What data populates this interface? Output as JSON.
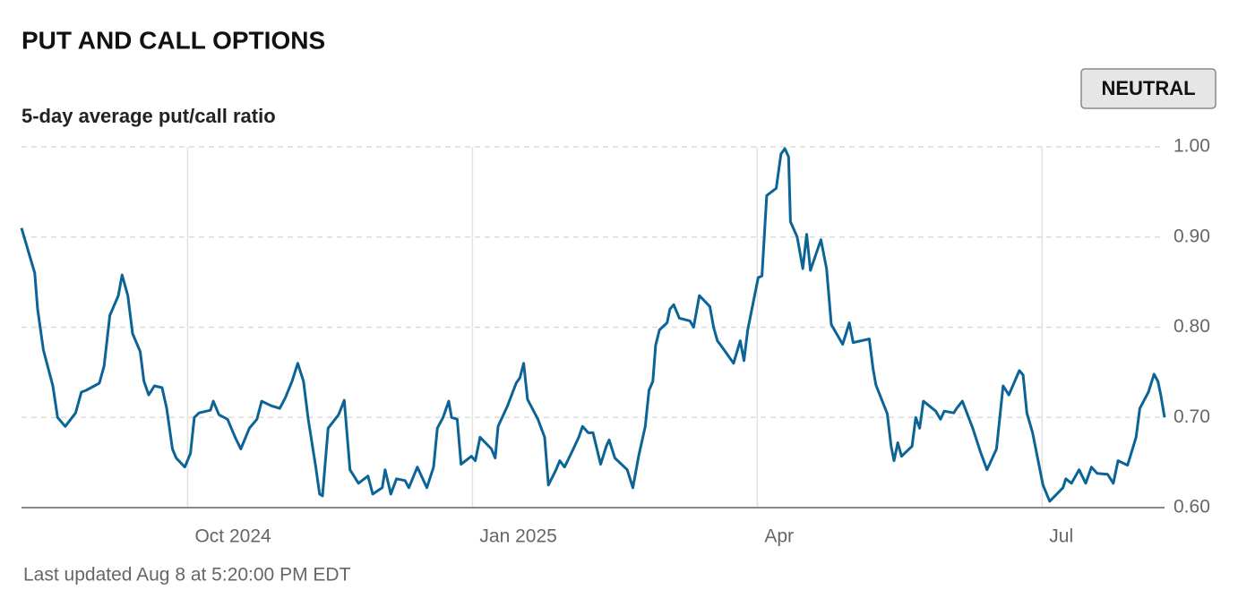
{
  "chart_data": {
    "type": "line",
    "title": "PUT AND CALL OPTIONS",
    "subtitle": "5-day average put/call ratio",
    "badge": "NEUTRAL",
    "footnote": "Last updated Aug 8 at 5:20:00 PM EDT",
    "x": [
      8.25,
      8.39,
      8.42,
      8.48,
      8.58,
      8.63,
      8.71,
      8.82,
      8.88,
      8.93,
      9.07,
      9.12,
      9.18,
      9.27,
      9.31,
      9.37,
      9.42,
      9.5,
      9.54,
      9.59,
      9.65,
      9.73,
      9.78,
      9.84,
      9.88,
      9.97,
      10.03,
      10.07,
      10.12,
      10.24,
      10.27,
      10.33,
      10.42,
      10.5,
      10.56,
      10.65,
      10.73,
      10.78,
      10.88,
      10.97,
      11.03,
      11.1,
      11.16,
      11.22,
      11.27,
      11.35,
      11.39,
      11.42,
      11.48,
      11.59,
      11.65,
      11.71,
      11.8,
      11.9,
      11.95,
      12.05,
      12.08,
      12.14,
      12.2,
      12.29,
      12.33,
      12.42,
      12.52,
      12.59,
      12.63,
      12.69,
      12.75,
      12.78,
      12.84,
      12.88,
      12.99,
      13.03,
      13.08,
      13.2,
      13.24,
      13.27,
      13.37,
      13.46,
      13.5,
      13.54,
      13.58,
      13.69,
      13.76,
      13.8,
      13.88,
      13.92,
      13.97,
      14.03,
      14.12,
      14.16,
      14.22,
      14.27,
      14.35,
      14.41,
      14.44,
      14.5,
      14.63,
      14.69,
      14.75,
      14.82,
      14.86,
      14.9,
      14.93,
      14.97,
      15.05,
      15.08,
      15.12,
      15.18,
      15.29,
      15.33,
      15.39,
      15.5,
      15.54,
      15.58,
      15.63,
      15.75,
      15.82,
      15.86,
      15.9,
      16.01,
      16.05,
      16.1,
      16.2,
      16.25,
      16.29,
      16.33,
      16.35,
      16.42,
      16.48,
      16.52,
      16.56,
      16.67,
      16.73,
      16.78,
      16.9,
      16.97,
      17.01,
      17.18,
      17.22,
      17.25,
      17.37,
      17.41,
      17.44,
      17.48,
      17.52,
      17.63,
      17.67,
      17.71,
      17.75,
      17.88,
      17.93,
      17.97,
      18.07,
      18.1,
      18.16,
      18.27,
      18.35,
      18.42,
      18.52,
      18.59,
      18.65,
      18.76,
      18.8,
      18.84,
      18.9,
      19.01,
      19.08,
      19.22,
      19.25,
      19.31,
      19.39,
      19.46,
      19.52,
      19.58,
      19.69,
      19.75,
      19.8,
      19.9,
      19.93,
      19.99,
      20.03,
      20.12,
      20.18,
      20.22,
      20.25,
      20.29
    ],
    "series": [
      {
        "name": "5-day average put/call ratio",
        "color": "#0c6496",
        "values": [
          0.91,
          0.86,
          0.82,
          0.775,
          0.735,
          0.7,
          0.69,
          0.705,
          0.728,
          0.73,
          0.738,
          0.757,
          0.813,
          0.835,
          0.858,
          0.835,
          0.793,
          0.773,
          0.74,
          0.725,
          0.735,
          0.733,
          0.71,
          0.665,
          0.655,
          0.645,
          0.66,
          0.7,
          0.705,
          0.708,
          0.718,
          0.703,
          0.698,
          0.678,
          0.665,
          0.688,
          0.698,
          0.718,
          0.713,
          0.71,
          0.722,
          0.74,
          0.76,
          0.74,
          0.698,
          0.645,
          0.615,
          0.613,
          0.688,
          0.703,
          0.719,
          0.642,
          0.627,
          0.635,
          0.615,
          0.622,
          0.642,
          0.615,
          0.632,
          0.63,
          0.622,
          0.645,
          0.622,
          0.645,
          0.688,
          0.7,
          0.718,
          0.7,
          0.698,
          0.648,
          0.657,
          0.652,
          0.678,
          0.665,
          0.655,
          0.69,
          0.713,
          0.738,
          0.744,
          0.76,
          0.72,
          0.698,
          0.678,
          0.625,
          0.642,
          0.652,
          0.645,
          0.658,
          0.678,
          0.69,
          0.683,
          0.683,
          0.648,
          0.668,
          0.675,
          0.655,
          0.642,
          0.622,
          0.657,
          0.69,
          0.73,
          0.74,
          0.78,
          0.797,
          0.805,
          0.82,
          0.825,
          0.81,
          0.807,
          0.8,
          0.835,
          0.823,
          0.8,
          0.785,
          0.778,
          0.76,
          0.785,
          0.763,
          0.797,
          0.855,
          0.857,
          0.946,
          0.954,
          0.992,
          0.998,
          0.989,
          0.917,
          0.9,
          0.865,
          0.903,
          0.863,
          0.897,
          0.865,
          0.803,
          0.781,
          0.805,
          0.783,
          0.787,
          0.754,
          0.736,
          0.704,
          0.668,
          0.652,
          0.672,
          0.657,
          0.668,
          0.7,
          0.688,
          0.718,
          0.707,
          0.698,
          0.707,
          0.705,
          0.71,
          0.718,
          0.688,
          0.662,
          0.642,
          0.665,
          0.735,
          0.725,
          0.752,
          0.747,
          0.705,
          0.683,
          0.625,
          0.607,
          0.622,
          0.632,
          0.627,
          0.642,
          0.627,
          0.645,
          0.638,
          0.637,
          0.627,
          0.652,
          0.647,
          0.657,
          0.678,
          0.71,
          0.728,
          0.748,
          0.74,
          0.725,
          0.7
        ]
      }
    ],
    "xlim": [
      8.25,
      20.29
    ],
    "xticks": [
      {
        "value": 10,
        "label": "Oct 2024"
      },
      {
        "value": 13,
        "label": "Jan 2025"
      },
      {
        "value": 16,
        "label": "Apr"
      },
      {
        "value": 19,
        "label": "Jul"
      }
    ],
    "ylim": [
      0.6,
      1.0
    ],
    "yticks": [
      {
        "value": 0.6,
        "label": "0.60"
      },
      {
        "value": 0.7,
        "label": "0.70"
      },
      {
        "value": 0.8,
        "label": "0.80"
      },
      {
        "value": 0.9,
        "label": "0.90"
      },
      {
        "value": 1.0,
        "label": "1.00"
      }
    ],
    "grid": true
  }
}
